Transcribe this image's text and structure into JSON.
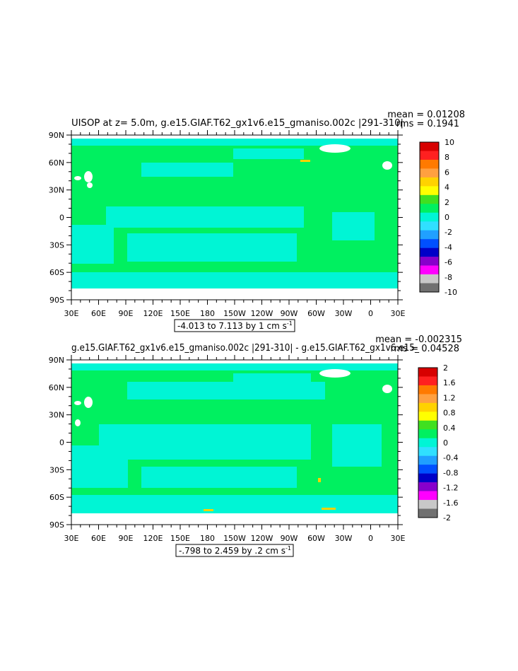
{
  "figure": {
    "panels": [
      {
        "title": "UISOP at z=    5.0m, g.e15.GIAF.T62_gx1v6.e15_gmaniso.002c |291-310|",
        "stat_mean": "mean = 0.01208",
        "stat_rms": "rms = 0.1941",
        "range_label": "-4.013 to 7.113 by 1 cm s",
        "range_unit_exp": "-1",
        "colorbar": {
          "labels": [
            "10",
            "8",
            "6",
            "4",
            "2",
            "0",
            "-2",
            "-4",
            "-6",
            "-8",
            "-10"
          ],
          "colors": [
            "#d70000",
            "#ff2020",
            "#ff7a00",
            "#ffa040",
            "#ffd200",
            "#ffff00",
            "#40e020",
            "#00f060",
            "#00f5d5",
            "#30e0ff",
            "#20a0ff",
            "#0050ff",
            "#0000c8",
            "#8800cc",
            "#ff00ff",
            "#c8c8c8",
            "#707070"
          ]
        }
      },
      {
        "title": "g.e15.GIAF.T62_gx1v6.e15_gmaniso.002c |291-310| - g.e15.GIAF.T62_gx1v6.e15_",
        "stat_mean": "mean = -0.002315",
        "stat_rms": "rms = 0.04528",
        "range_label": "-.798 to 2.459 by .2 cm s",
        "range_unit_exp": "-1",
        "colorbar": {
          "labels": [
            "2",
            "1.6",
            "1.2",
            "0.8",
            "0.4",
            "0",
            "-0.4",
            "-0.8",
            "-1.2",
            "-1.6",
            "-2"
          ],
          "colors": [
            "#d70000",
            "#ff2020",
            "#ff7a00",
            "#ffa040",
            "#ffd200",
            "#ffff00",
            "#40e020",
            "#00f060",
            "#00f5d5",
            "#30e0ff",
            "#20a0ff",
            "#0050ff",
            "#0000c8",
            "#8800cc",
            "#ff00ff",
            "#c8c8c8",
            "#707070"
          ]
        }
      }
    ],
    "xticks": [
      "30E",
      "60E",
      "90E",
      "120E",
      "150E",
      "180",
      "150W",
      "120W",
      "90W",
      "60W",
      "30W",
      "0",
      "30E"
    ],
    "yticks": [
      "90N",
      "60N",
      "30N",
      "0",
      "30S",
      "60S",
      "90S"
    ]
  },
  "chart_data": [
    {
      "type": "heatmap",
      "variable": "UISOP at z= 5.0m",
      "xlim": [
        "30E",
        "30E"
      ],
      "ylim": [
        "90S",
        "90N"
      ],
      "contour_min": -4.013,
      "contour_max": 7.113,
      "contour_interval": 1,
      "units": "cm s^-1",
      "colorbar_levels": [
        10,
        8,
        6,
        4,
        2,
        0,
        -2,
        -4,
        -6,
        -8,
        -10
      ],
      "mean": 0.01208,
      "rms": 0.1941
    },
    {
      "type": "heatmap",
      "variable": "difference",
      "xlim": [
        "30E",
        "30E"
      ],
      "ylim": [
        "90S",
        "90N"
      ],
      "contour_min": -0.798,
      "contour_max": 2.459,
      "contour_interval": 0.2,
      "units": "cm s^-1",
      "colorbar_levels": [
        2,
        1.6,
        1.2,
        0.8,
        0.4,
        0,
        -0.4,
        -0.8,
        -1.2,
        -1.6,
        -2
      ],
      "mean": -0.002315,
      "rms": 0.04528
    }
  ]
}
